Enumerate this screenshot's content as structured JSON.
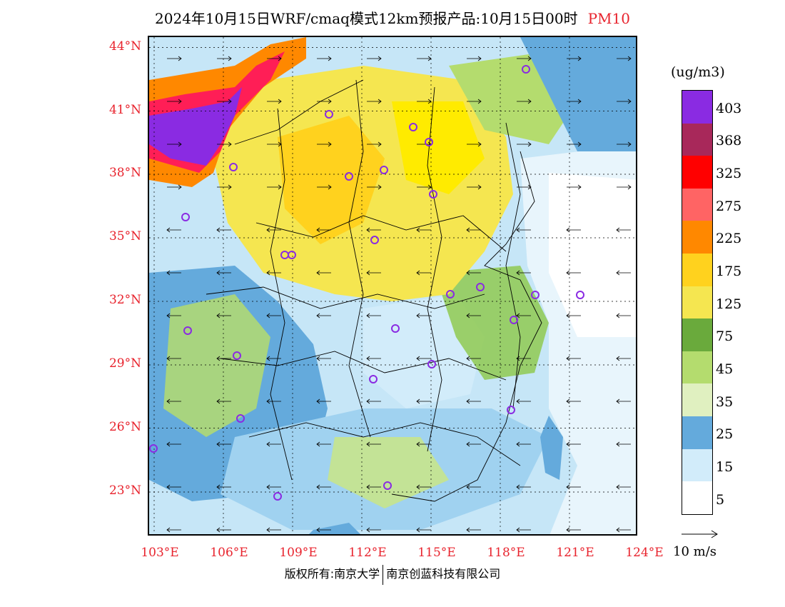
{
  "title": {
    "main": "2024年10月15日WRF/cmaq模式12km预报产品:10月15日00时",
    "pollutant": "PM10",
    "pollutant_color": "#e8232d"
  },
  "map": {
    "lat_labels": [
      "44°N",
      "41°N",
      "38°N",
      "35°N",
      "32°N",
      "29°N",
      "26°N",
      "23°N"
    ],
    "lon_labels": [
      "103°E",
      "106°E",
      "109°E",
      "112°E",
      "115°E",
      "118°E",
      "121°E",
      "124°E"
    ],
    "label_color": "#e8232d",
    "city_marker_color": "#8a2be2",
    "city_marker_count": 27
  },
  "legend": {
    "units": "(ug/m3)",
    "colors": [
      "#8a2be2",
      "#9b30c8",
      "#a8285a",
      "#c0157a",
      "#ff0000",
      "#ff1e56",
      "#ff6464",
      "#ee5522",
      "#ff8800",
      "#ffa526",
      "#ffd21e",
      "#ffeb00",
      "#f5e650",
      "#f2f55a",
      "#6aaa3c",
      "#8cc846",
      "#b4dc6e",
      "#c6e48c",
      "#e0f0c0",
      "#4a8ec8",
      "#64aadc",
      "#a0d2f0",
      "#d2ecfa",
      "#ffffff"
    ],
    "labels": [
      "403",
      "368",
      "325",
      "275",
      "225",
      "175",
      "125",
      "75",
      "45",
      "35",
      "25",
      "15",
      "5"
    ]
  },
  "wind_reference": {
    "label": "10 m/s"
  },
  "credit": {
    "left": "版权所有:南京大学",
    "right": "南京创蓝科技有限公司"
  }
}
